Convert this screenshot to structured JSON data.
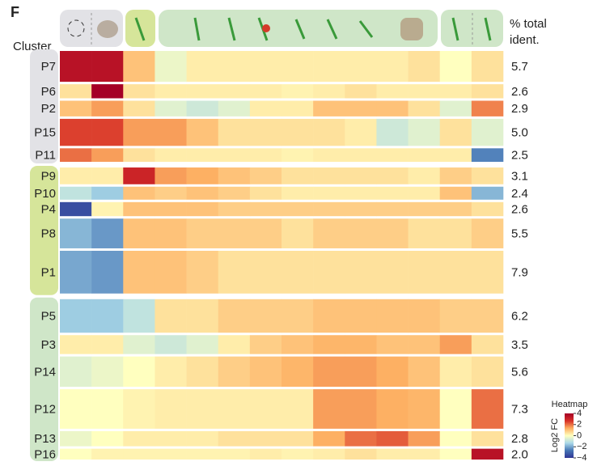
{
  "chart_data": {
    "type": "heatmap",
    "panel_label": "F",
    "row_header": "Cluster",
    "pct_header": [
      "% total",
      "ident."
    ],
    "rows": [
      "P7",
      "P6",
      "P2",
      "P15",
      "P11",
      "P9",
      "P10",
      "P4",
      "P8",
      "P1",
      "P5",
      "P3",
      "P14",
      "P12",
      "P13",
      "P16"
    ],
    "pct": [
      5.7,
      2.6,
      2.9,
      5.0,
      2.5,
      3.1,
      2.4,
      2.6,
      5.5,
      7.9,
      6.2,
      3.5,
      5.6,
      7.3,
      2.8,
      2.0
    ],
    "pct_labels": [
      "5.7",
      "2.6",
      "2.9",
      "5.0",
      "2.5",
      "3.1",
      "2.4",
      "2.6",
      "5.5",
      "7.9",
      "6.2",
      "3.5",
      "5.6",
      "7.3",
      "2.8",
      "2.0"
    ],
    "values": [
      [
        3.5,
        3.5,
        1,
        -0.3,
        0.3,
        0.3,
        0.3,
        0.3,
        0.3,
        0.3,
        0.3,
        0.5,
        0,
        0.5
      ],
      [
        0.5,
        4,
        0.5,
        0.3,
        0.3,
        0.3,
        0.3,
        0.2,
        0.3,
        0.5,
        0.3,
        0.3,
        0.3,
        0.5
      ],
      [
        1,
        1.5,
        0.5,
        -0.5,
        -0.8,
        -0.5,
        0.3,
        0.3,
        1,
        1,
        1,
        0.5,
        -0.5,
        1.8
      ],
      [
        2.5,
        2.5,
        1.5,
        1.5,
        1,
        0.5,
        0.5,
        0.5,
        0.5,
        0.3,
        -0.8,
        -0.5,
        0.5,
        -0.5
      ],
      [
        2,
        1.5,
        0.5,
        0.3,
        0.3,
        0.3,
        0.3,
        0.2,
        0.3,
        0.3,
        0.3,
        0.3,
        0.3,
        -2.5
      ],
      [
        0.3,
        0.3,
        3,
        1.5,
        1.3,
        1,
        0.8,
        0.5,
        0.5,
        0.5,
        0.5,
        0.3,
        0.8,
        0.5
      ],
      [
        -1,
        -1.5,
        1,
        0.8,
        1,
        0.8,
        0.5,
        0.3,
        0.3,
        0.3,
        0.3,
        0.3,
        1,
        -1.8
      ],
      [
        -3.5,
        0.2,
        1,
        1,
        1,
        0.8,
        0.8,
        0.8,
        0.8,
        0.8,
        0.8,
        0.8,
        0.8,
        0.5
      ],
      [
        -1.8,
        -2.2,
        1,
        1,
        0.8,
        0.8,
        0.8,
        0.5,
        0.8,
        0.8,
        0.8,
        0.5,
        0.5,
        0.8
      ],
      [
        -2,
        -2.2,
        1,
        1,
        0.8,
        0.5,
        0.5,
        0.5,
        0.5,
        0.5,
        0.5,
        0.5,
        0.5,
        0.5
      ],
      [
        -1.5,
        -1.5,
        -1,
        0.5,
        0.5,
        0.8,
        0.8,
        0.8,
        1,
        1,
        1,
        1,
        0.8,
        0.8
      ],
      [
        0.3,
        0.3,
        -0.5,
        -0.8,
        -0.5,
        0.3,
        0.8,
        1,
        1.2,
        1.2,
        1,
        1,
        1.5,
        0.5
      ],
      [
        -0.5,
        -0.3,
        0,
        0.3,
        0.5,
        0.8,
        1,
        1.2,
        1.5,
        1.5,
        1.3,
        1,
        0.3,
        0.5
      ],
      [
        0,
        0,
        0.2,
        0.3,
        0.3,
        0.3,
        0.3,
        0.3,
        1.5,
        1.5,
        1.3,
        1.2,
        0,
        2
      ],
      [
        -0.3,
        0,
        0.3,
        0.3,
        0.3,
        0.5,
        0.5,
        0.5,
        1.3,
        2,
        2.2,
        1.5,
        0,
        0.5
      ],
      [
        0,
        0.2,
        0.2,
        0.2,
        0.2,
        0.2,
        0.3,
        0.2,
        0.3,
        0.5,
        0.3,
        0.3,
        0,
        3.5
      ]
    ],
    "colorscale": [
      "#313695",
      "#4575b4",
      "#abd9e9",
      "#ffffbf",
      "#fdae61",
      "#d73027",
      "#a50026"
    ],
    "zlim": [
      -4,
      4
    ],
    "colorbar_title": "Heatmap",
    "colorbar_label": "Log2 FC",
    "colorbar_ticks": [
      4,
      2,
      0,
      {
        "value": -2,
        "label": "−2"
      },
      {
        "value": -4,
        "label": "−4"
      }
    ]
  }
}
